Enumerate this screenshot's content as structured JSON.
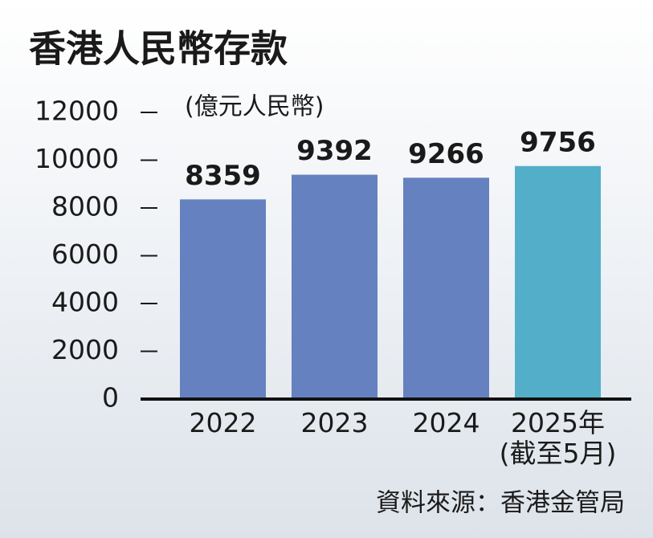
{
  "chart_data": {
    "type": "bar",
    "title": "香港人民幣存款",
    "subtitle": "(億元人民幣)",
    "categories": [
      "2022",
      "2023",
      "2024",
      "2025年\n(截至5月)"
    ],
    "values": [
      8359,
      9392,
      9266,
      9756
    ],
    "colors": [
      "#6581c0",
      "#6581c0",
      "#6581c0",
      "#53afc9"
    ],
    "ylim": [
      0,
      12000
    ],
    "yticks": [
      0,
      2000,
      4000,
      6000,
      8000,
      10000,
      12000
    ],
    "grid": false,
    "source": "資料來源：香港金管局"
  }
}
